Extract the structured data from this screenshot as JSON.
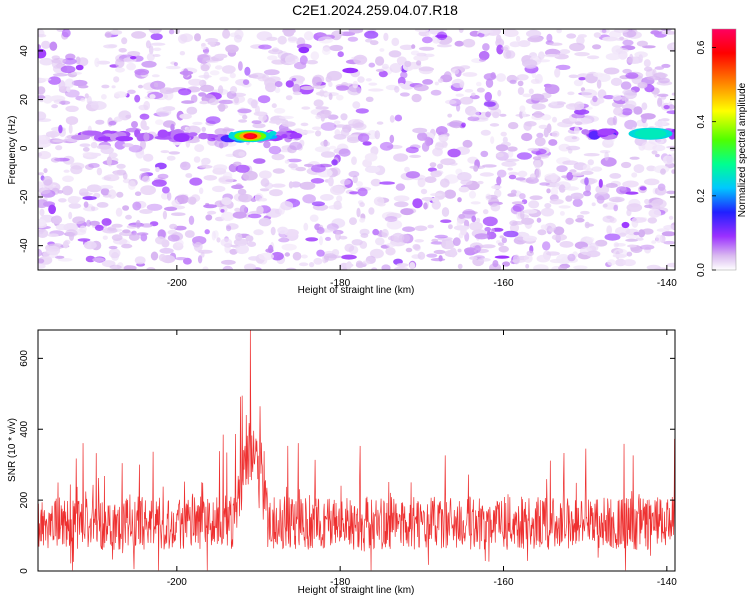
{
  "title": "C2E1.2024.259.04.07.R18",
  "chart_data": [
    {
      "type": "heatmap",
      "xlabel": "Height of straight line (km)",
      "ylabel": "Frequency (Hz)",
      "xlim": [
        -217,
        -139
      ],
      "ylim": [
        -50,
        49
      ],
      "xticks": [
        -200,
        -180,
        -160,
        -140
      ],
      "yticks": [
        -40,
        -20,
        0,
        20,
        40
      ],
      "colorbar": {
        "label": "Normalized spectral amplitude",
        "range": [
          0.0,
          0.65
        ],
        "ticks": [
          0.0,
          0.2,
          0.4,
          0.6
        ],
        "tick_labels": [
          "0.0",
          "0.2",
          "0.4",
          "0.6"
        ],
        "colors": [
          "#ffffff",
          "#d9b8f0",
          "#9b30ff",
          "#2020ff",
          "#00c8ff",
          "#00ff90",
          "#50ff00",
          "#ffff00",
          "#ff8000",
          "#ff0000",
          "#ff0060"
        ]
      },
      "features": [
        {
          "name": "",
          "frequency_hz": 5,
          "x_range": [
            -212,
            -185
          ],
          "peak_value": 0.15
        },
        {
          "name": "",
          "frequency_hz": 5,
          "x_range": [
            -194,
            -188
          ],
          "peak_value": 0.62,
          "peak_x": -191
        },
        {
          "name": "",
          "frequency_hz": 6,
          "x_range": [
            -150,
            -139
          ],
          "peak_value": 0.3,
          "peak_x": -142
        }
      ]
    },
    {
      "type": "line",
      "xlabel": "Height of straight line (km)",
      "ylabel": "SNR (10 * v/v)",
      "xlim": [
        -217,
        -139
      ],
      "ylim": [
        0,
        680
      ],
      "xticks": [
        -200,
        -180,
        -160,
        -140
      ],
      "yticks": [
        0,
        200,
        400,
        600
      ],
      "series": [
        {
          "name": "",
          "color": "#ee3030",
          "baseline_mean": 135,
          "noise_peak_max": 330,
          "peak_x": -191,
          "peak_value": 680,
          "secondary_peaks": [
            {
              "x": -192,
              "y": 495
            },
            {
              "x": -191.5,
              "y": 440
            }
          ]
        }
      ]
    }
  ]
}
